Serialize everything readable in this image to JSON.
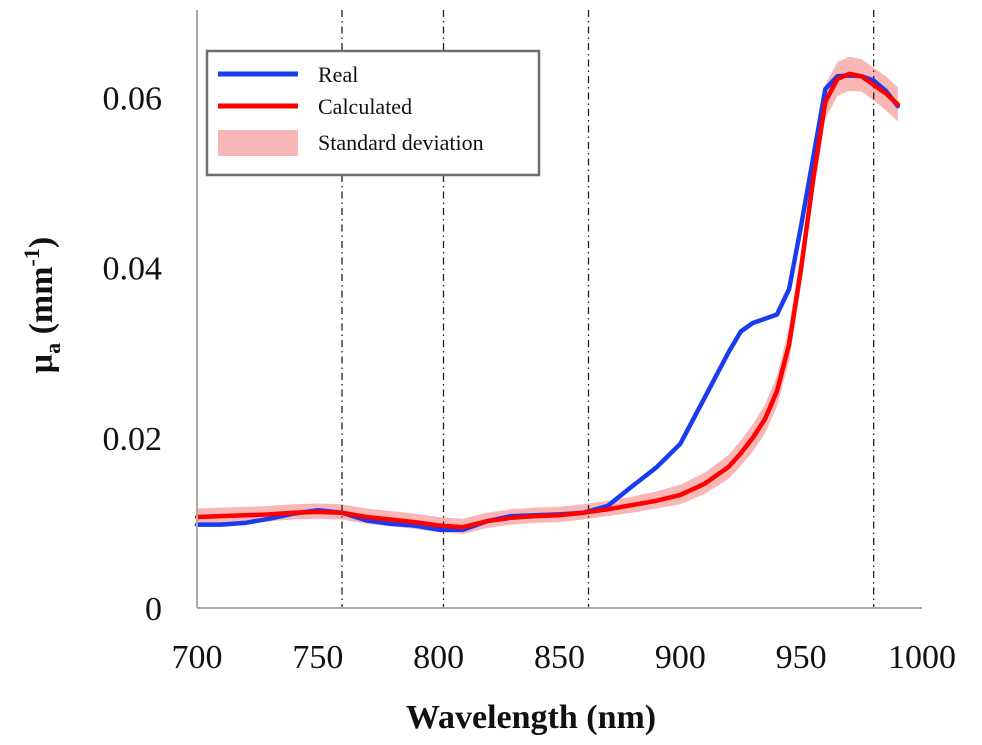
{
  "chart_data": {
    "type": "line",
    "title": "",
    "xlabel": "Wavelength (nm)",
    "ylabel": {
      "base": "μ",
      "sub": "a",
      "unit_open": " (mm",
      "sup": "-1",
      "unit_close": ")"
    },
    "xlim": [
      700,
      1000
    ],
    "ylim": [
      0,
      0.065
    ],
    "xticks": [
      700,
      750,
      800,
      850,
      900,
      950,
      1000
    ],
    "yticks": [
      0,
      0.02,
      0.04,
      0.06
    ],
    "xtick_labels": [
      "700",
      "750",
      "800",
      "850",
      "900",
      "950",
      "1000"
    ],
    "ytick_labels": [
      "0",
      "0.02",
      "0.04",
      "0.06"
    ],
    "grid": false,
    "vlines": [
      760,
      802,
      862,
      980
    ],
    "legend_position": "top-left",
    "legend": [
      {
        "label": "Real",
        "kind": "line",
        "color": "#1a3cf0"
      },
      {
        "label": "Calculated",
        "kind": "line",
        "color": "#ff0000"
      },
      {
        "label": "Standard deviation",
        "kind": "band",
        "color": "#f9b6b6"
      }
    ],
    "x": [
      700,
      710,
      720,
      730,
      740,
      750,
      760,
      770,
      780,
      790,
      800,
      810,
      820,
      830,
      840,
      850,
      860,
      870,
      880,
      890,
      900,
      910,
      920,
      925,
      930,
      935,
      940,
      945,
      950,
      955,
      960,
      965,
      970,
      975,
      980,
      985,
      990
    ],
    "series": [
      {
        "name": "Real",
        "color": "#1a3cf0",
        "values": [
          0.0098,
          0.0098,
          0.01,
          0.0105,
          0.0111,
          0.0115,
          0.0112,
          0.0103,
          0.0099,
          0.0097,
          0.0092,
          0.0092,
          0.0102,
          0.0108,
          0.0109,
          0.011,
          0.0112,
          0.012,
          0.0143,
          0.0165,
          0.0193,
          0.0247,
          0.0301,
          0.0325,
          0.0335,
          0.034,
          0.0345,
          0.0375,
          0.045,
          0.053,
          0.061,
          0.0625,
          0.0626,
          0.0625,
          0.062,
          0.0608,
          0.059
        ]
      },
      {
        "name": "Calculated",
        "color": "#ff0000",
        "values": [
          0.0107,
          0.0108,
          0.0109,
          0.011,
          0.0112,
          0.0113,
          0.0112,
          0.0107,
          0.0104,
          0.0101,
          0.0097,
          0.0095,
          0.0102,
          0.0106,
          0.0108,
          0.0109,
          0.0112,
          0.0116,
          0.0121,
          0.0126,
          0.0133,
          0.0146,
          0.0166,
          0.0182,
          0.02,
          0.0222,
          0.0255,
          0.031,
          0.04,
          0.0505,
          0.0595,
          0.0622,
          0.0628,
          0.0625,
          0.0615,
          0.0605,
          0.0592
        ]
      }
    ],
    "std_band": {
      "name": "Standard deviation",
      "color": "#f9b6b6",
      "lower": [
        0.0099,
        0.01,
        0.0101,
        0.0102,
        0.0104,
        0.0105,
        0.0104,
        0.0099,
        0.0096,
        0.0093,
        0.0089,
        0.0087,
        0.0094,
        0.0098,
        0.01,
        0.0101,
        0.0104,
        0.0108,
        0.0112,
        0.0117,
        0.0122,
        0.0134,
        0.0152,
        0.0167,
        0.0184,
        0.0205,
        0.0237,
        0.029,
        0.038,
        0.0485,
        0.0575,
        0.0602,
        0.0608,
        0.0607,
        0.0597,
        0.0585,
        0.0572
      ],
      "upper": [
        0.0117,
        0.0118,
        0.0119,
        0.012,
        0.0122,
        0.0123,
        0.0122,
        0.0117,
        0.0114,
        0.0111,
        0.0107,
        0.0105,
        0.0112,
        0.0116,
        0.0118,
        0.0119,
        0.0122,
        0.0126,
        0.0131,
        0.0137,
        0.0145,
        0.0159,
        0.018,
        0.0197,
        0.0216,
        0.0239,
        0.0273,
        0.033,
        0.042,
        0.0525,
        0.0615,
        0.0642,
        0.0648,
        0.0645,
        0.0635,
        0.0625,
        0.0612
      ]
    }
  }
}
